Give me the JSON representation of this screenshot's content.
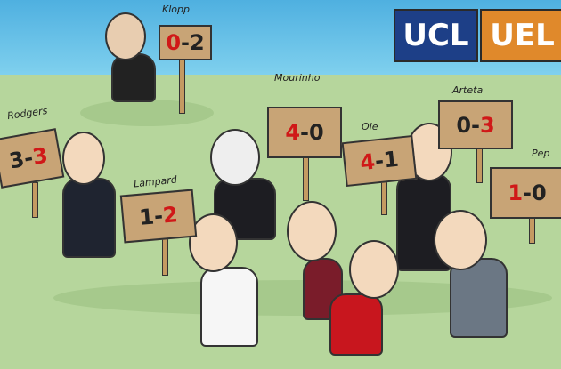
{
  "badges": {
    "ucl": "UCL",
    "uel": "UEL",
    "ucl_color": "#1d3f87",
    "uel_color": "#e0892b"
  },
  "managers": [
    {
      "name": "Klopp",
      "home": "0",
      "away": "2",
      "highlight": "home"
    },
    {
      "name": "Rodgers",
      "home": "3",
      "away": "3",
      "highlight": "away"
    },
    {
      "name": "Mourinho",
      "home": "4",
      "away": "0",
      "highlight": "home"
    },
    {
      "name": "Arteta",
      "home": "0",
      "away": "3",
      "highlight": "away"
    },
    {
      "name": "Ole",
      "home": "4",
      "away": "1",
      "highlight": "home"
    },
    {
      "name": "Pep",
      "home": "1",
      "away": "0",
      "highlight": "home"
    },
    {
      "name": "Lampard",
      "home": "1",
      "away": "2",
      "highlight": "away"
    }
  ],
  "colors": {
    "highlight": "#d01818",
    "sky": "#4fb0e0",
    "grass": "#b6d69c"
  }
}
